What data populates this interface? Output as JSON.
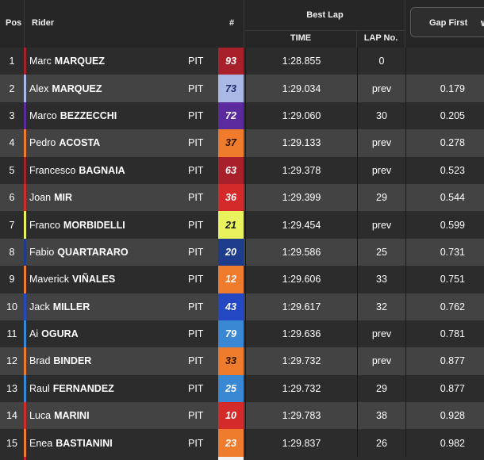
{
  "header": {
    "pos": "Pos",
    "rider": "Rider",
    "number": "#",
    "best_lap": "Best Lap",
    "time": "TIME",
    "lap_no": "LAP No.",
    "gap_first": "Gap First"
  },
  "rows": [
    {
      "pos": "1",
      "first": "Marc",
      "last": "MARQUEZ",
      "pit": "PIT",
      "num": "93",
      "num_bg": "#a8202a",
      "num_fg": "#ffffff",
      "stripe": "#a8202a",
      "time": "1:28.855",
      "lap": "0",
      "gap": ""
    },
    {
      "pos": "2",
      "first": "Alex",
      "last": "MARQUEZ",
      "pit": "PIT",
      "num": "73",
      "num_bg": "#a9b8e4",
      "num_fg": "#1c2c6a",
      "stripe": "#a9b8e4",
      "time": "1:29.034",
      "lap": "prev",
      "gap": "0.179"
    },
    {
      "pos": "3",
      "first": "Marco",
      "last": "BEZZECCHI",
      "pit": "PIT",
      "num": "72",
      "num_bg": "#5b2b9e",
      "num_fg": "#ffffff",
      "stripe": "#5b2b9e",
      "time": "1:29.060",
      "lap": "30",
      "gap": "0.205"
    },
    {
      "pos": "4",
      "first": "Pedro",
      "last": "ACOSTA",
      "pit": "PIT",
      "num": "37",
      "num_bg": "#ef7b2c",
      "num_fg": "#2a1300",
      "stripe": "#ef7b2c",
      "time": "1:29.133",
      "lap": "prev",
      "gap": "0.278"
    },
    {
      "pos": "5",
      "first": "Francesco",
      "last": "BAGNAIA",
      "pit": "PIT",
      "num": "63",
      "num_bg": "#a8202a",
      "num_fg": "#ffffff",
      "stripe": "#a8202a",
      "time": "1:29.378",
      "lap": "prev",
      "gap": "0.523"
    },
    {
      "pos": "6",
      "first": "Joan",
      "last": "MIR",
      "pit": "PIT",
      "num": "36",
      "num_bg": "#d42a2a",
      "num_fg": "#ffffff",
      "stripe": "#d42a2a",
      "time": "1:29.399",
      "lap": "29",
      "gap": "0.544"
    },
    {
      "pos": "7",
      "first": "Franco",
      "last": "MORBIDELLI",
      "pit": "PIT",
      "num": "21",
      "num_bg": "#e8f25c",
      "num_fg": "#1a1a1a",
      "stripe": "#e8f25c",
      "time": "1:29.454",
      "lap": "prev",
      "gap": "0.599"
    },
    {
      "pos": "8",
      "first": "Fabio",
      "last": "QUARTARARO",
      "pit": "PIT",
      "num": "20",
      "num_bg": "#1d3c8c",
      "num_fg": "#ffffff",
      "stripe": "#1d3c8c",
      "time": "1:29.586",
      "lap": "25",
      "gap": "0.731"
    },
    {
      "pos": "9",
      "first": "Maverick",
      "last": "VIÑALES",
      "pit": "PIT",
      "num": "12",
      "num_bg": "#ef7b2c",
      "num_fg": "#ffffff",
      "stripe": "#ef7b2c",
      "time": "1:29.606",
      "lap": "33",
      "gap": "0.751"
    },
    {
      "pos": "10",
      "first": "Jack",
      "last": "MILLER",
      "pit": "PIT",
      "num": "43",
      "num_bg": "#2447c4",
      "num_fg": "#ffffff",
      "stripe": "#2447c4",
      "time": "1:29.617",
      "lap": "32",
      "gap": "0.762"
    },
    {
      "pos": "11",
      "first": "Ai",
      "last": "OGURA",
      "pit": "PIT",
      "num": "79",
      "num_bg": "#3a87d4",
      "num_fg": "#ffffff",
      "stripe": "#3a87d4",
      "time": "1:29.636",
      "lap": "prev",
      "gap": "0.781"
    },
    {
      "pos": "12",
      "first": "Brad",
      "last": "BINDER",
      "pit": "PIT",
      "num": "33",
      "num_bg": "#ef7b2c",
      "num_fg": "#2a1300",
      "stripe": "#ef7b2c",
      "time": "1:29.732",
      "lap": "prev",
      "gap": "0.877"
    },
    {
      "pos": "13",
      "first": "Raul",
      "last": "FERNANDEZ",
      "pit": "PIT",
      "num": "25",
      "num_bg": "#3a87d4",
      "num_fg": "#ffffff",
      "stripe": "#3a87d4",
      "time": "1:29.732",
      "lap": "29",
      "gap": "0.877"
    },
    {
      "pos": "14",
      "first": "Luca",
      "last": "MARINI",
      "pit": "PIT",
      "num": "10",
      "num_bg": "#d42a2a",
      "num_fg": "#ffffff",
      "stripe": "#d42a2a",
      "time": "1:29.783",
      "lap": "38",
      "gap": "0.928"
    },
    {
      "pos": "15",
      "first": "Enea",
      "last": "BASTIANINI",
      "pit": "PIT",
      "num": "23",
      "num_bg": "#ef7b2c",
      "num_fg": "#ffffff",
      "stripe": "#ef7b2c",
      "time": "1:29.837",
      "lap": "26",
      "gap": "0.982"
    }
  ]
}
